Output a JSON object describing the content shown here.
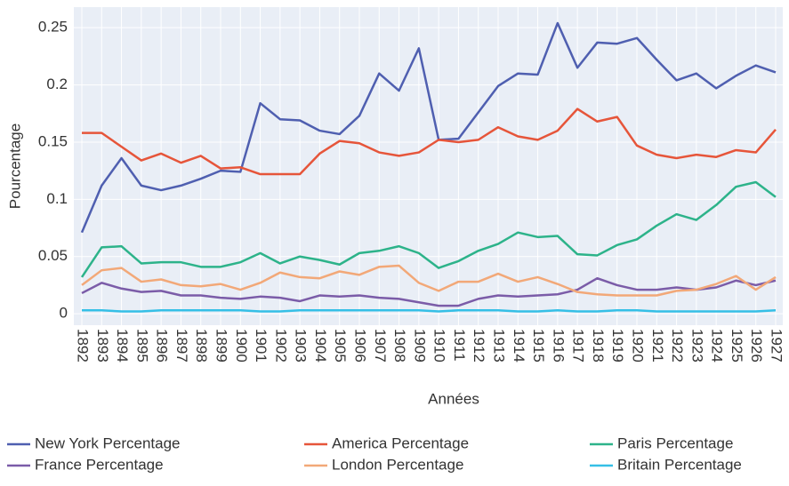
{
  "chart_data": {
    "type": "line",
    "x_label": "Années",
    "y_label": "Pourcentage",
    "categories": [
      "1892",
      "1893",
      "1894",
      "1895",
      "1896",
      "1897",
      "1898",
      "1899",
      "1900",
      "1901",
      "1902",
      "1903",
      "1904",
      "1905",
      "1906",
      "1907",
      "1908",
      "1909",
      "1910",
      "1911",
      "1912",
      "1913",
      "1914",
      "1915",
      "1916",
      "1917",
      "1918",
      "1919",
      "1920",
      "1921",
      "1922",
      "1923",
      "1924",
      "1925",
      "1926",
      "1927"
    ],
    "series": [
      {
        "name": "New York Percentage",
        "color": "#4f5fb0",
        "values": [
          0.071,
          0.112,
          0.136,
          0.112,
          0.108,
          0.112,
          0.118,
          0.125,
          0.124,
          0.184,
          0.17,
          0.169,
          0.16,
          0.157,
          0.173,
          0.21,
          0.195,
          0.232,
          0.152,
          0.153,
          0.176,
          0.199,
          0.21,
          0.209,
          0.254,
          0.215,
          0.237,
          0.236,
          0.241,
          0.222,
          0.204,
          0.21,
          0.197,
          0.208,
          0.217,
          0.211
        ]
      },
      {
        "name": "America Percentage",
        "color": "#e6553a",
        "values": [
          0.158,
          0.158,
          0.146,
          0.134,
          0.14,
          0.132,
          0.138,
          0.127,
          0.128,
          0.122,
          0.122,
          0.122,
          0.14,
          0.151,
          0.149,
          0.141,
          0.138,
          0.141,
          0.152,
          0.15,
          0.152,
          0.163,
          0.155,
          0.152,
          0.16,
          0.179,
          0.168,
          0.172,
          0.147,
          0.139,
          0.136,
          0.139,
          0.137,
          0.143,
          0.141,
          0.161
        ]
      },
      {
        "name": "Paris Percentage",
        "color": "#2db38a",
        "values": [
          0.032,
          0.058,
          0.059,
          0.044,
          0.045,
          0.045,
          0.041,
          0.041,
          0.045,
          0.053,
          0.044,
          0.05,
          0.047,
          0.043,
          0.053,
          0.055,
          0.059,
          0.053,
          0.04,
          0.046,
          0.055,
          0.061,
          0.071,
          0.067,
          0.068,
          0.052,
          0.051,
          0.06,
          0.065,
          0.077,
          0.087,
          0.082,
          0.095,
          0.111,
          0.115,
          0.102
        ]
      },
      {
        "name": "France Percentage",
        "color": "#7b5ca8",
        "values": [
          0.018,
          0.027,
          0.022,
          0.019,
          0.02,
          0.016,
          0.016,
          0.014,
          0.013,
          0.015,
          0.014,
          0.011,
          0.016,
          0.015,
          0.016,
          0.014,
          0.013,
          0.01,
          0.007,
          0.007,
          0.013,
          0.016,
          0.015,
          0.016,
          0.017,
          0.021,
          0.031,
          0.025,
          0.021,
          0.021,
          0.023,
          0.021,
          0.023,
          0.029,
          0.025,
          0.029
        ]
      },
      {
        "name": "London Percentage",
        "color": "#f2a878",
        "values": [
          0.025,
          0.038,
          0.04,
          0.028,
          0.03,
          0.025,
          0.024,
          0.026,
          0.021,
          0.027,
          0.036,
          0.032,
          0.031,
          0.037,
          0.034,
          0.041,
          0.042,
          0.027,
          0.02,
          0.028,
          0.028,
          0.035,
          0.028,
          0.032,
          0.026,
          0.019,
          0.017,
          0.016,
          0.016,
          0.016,
          0.02,
          0.021,
          0.026,
          0.033,
          0.021,
          0.032
        ]
      },
      {
        "name": "Britain Percentage",
        "color": "#35bfe6",
        "values": [
          0.003,
          0.003,
          0.002,
          0.002,
          0.003,
          0.003,
          0.003,
          0.003,
          0.003,
          0.002,
          0.002,
          0.003,
          0.003,
          0.003,
          0.003,
          0.003,
          0.003,
          0.003,
          0.002,
          0.003,
          0.003,
          0.003,
          0.002,
          0.002,
          0.003,
          0.002,
          0.002,
          0.003,
          0.003,
          0.002,
          0.002,
          0.002,
          0.002,
          0.002,
          0.002,
          0.003
        ]
      }
    ],
    "ylim": [
      -0.01,
      0.268
    ],
    "yticks": [
      0,
      0.05,
      0.1,
      0.15,
      0.2,
      0.25
    ],
    "grid": true,
    "legend": "bottom"
  }
}
